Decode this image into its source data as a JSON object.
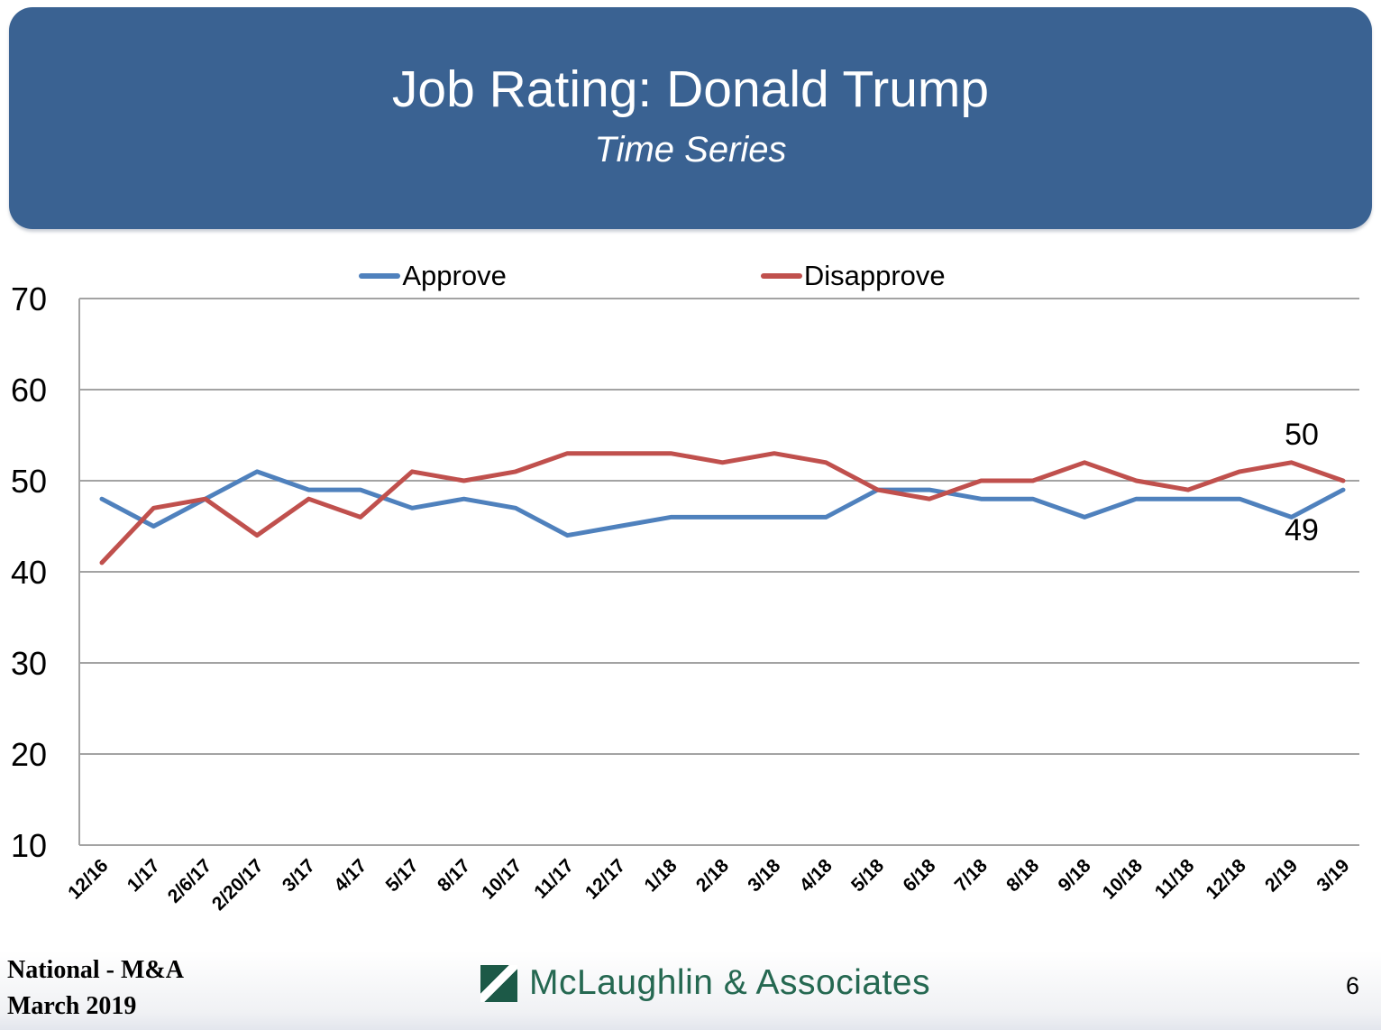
{
  "header": {
    "note": "header text bound from chart_data.title / chart_data.subtitle"
  },
  "chart_data": {
    "type": "line",
    "title": "Job Rating: Donald Trump",
    "subtitle": "Time Series",
    "xlabel": "",
    "ylabel": "",
    "ylim": [
      10,
      70
    ],
    "ytick_step": 10,
    "grid": true,
    "legend_position": "top",
    "categories": [
      "12/16",
      "1/17",
      "2/6/17",
      "2/20/17",
      "3/17",
      "4/17",
      "5/17",
      "8/17",
      "10/17",
      "11/17",
      "12/17",
      "1/18",
      "2/18",
      "3/18",
      "4/18",
      "5/18",
      "6/18",
      "7/18",
      "8/18",
      "9/18",
      "10/18",
      "11/18",
      "12/18",
      "2/19",
      "3/19"
    ],
    "series": [
      {
        "name": "Approve",
        "color": "#4F81BD",
        "values": [
          48,
          45,
          48,
          51,
          49,
          49,
          47,
          48,
          47,
          44,
          45,
          46,
          46,
          46,
          46,
          49,
          49,
          48,
          48,
          46,
          48,
          48,
          48,
          46,
          49
        ],
        "end_label": "49"
      },
      {
        "name": "Disapprove",
        "color": "#C0504D",
        "values": [
          41,
          47,
          48,
          44,
          48,
          46,
          51,
          50,
          51,
          53,
          53,
          53,
          52,
          53,
          52,
          49,
          48,
          50,
          50,
          52,
          50,
          49,
          51,
          52,
          50
        ],
        "end_label": "50"
      }
    ],
    "yticks": [
      10,
      20,
      30,
      40,
      50,
      60,
      70
    ]
  },
  "footer": {
    "left_line1": "National - M&A",
    "left_line2": "March 2019",
    "logo_text": "McLaughlin & Associates",
    "page_number": "6"
  },
  "colors": {
    "header_bg": "#3A6292",
    "approve_line": "#4F81BD",
    "disapprove_line": "#C0504D",
    "grid_line": "#A3A3A3",
    "axis_text": "#000000",
    "logo_green": "#1C5947",
    "logo_text_green": "#256851"
  }
}
